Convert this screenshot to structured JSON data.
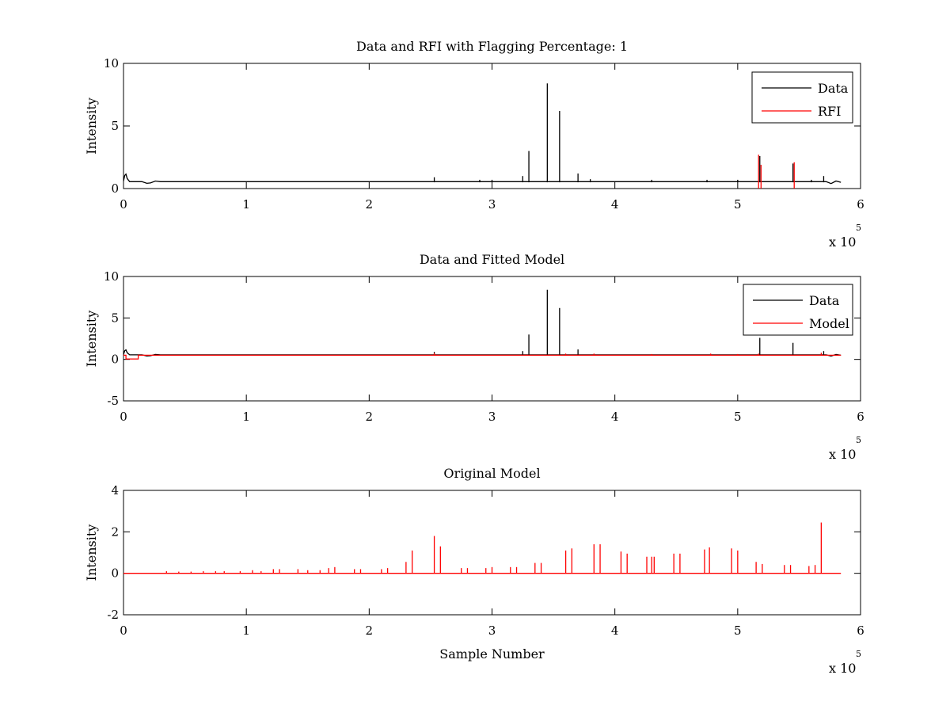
{
  "chart_data": [
    {
      "type": "line",
      "title": "Data and RFI with Flagging Percentage: 1",
      "xlabel": "",
      "ylabel": "Intensity",
      "xlim": [
        0,
        6
      ],
      "ylim": [
        0,
        10
      ],
      "xticks": [
        0,
        1,
        2,
        3,
        4,
        5,
        6
      ],
      "yticks": [
        0,
        5,
        10
      ],
      "x_exponent_label": "x 10",
      "x_exponent_power": "5",
      "legend": {
        "position": "top-right",
        "entries": [
          {
            "label": "Data",
            "color": "#000000"
          },
          {
            "label": "RFI",
            "color": "#ff0000"
          }
        ]
      },
      "series": [
        {
          "name": "Data",
          "color": "#000000",
          "baseline": [
            [
              0,
              0.6
            ],
            [
              0.01,
              1.05
            ],
            [
              0.02,
              1.15
            ],
            [
              0.03,
              0.8
            ],
            [
              0.05,
              0.55
            ],
            [
              0.15,
              0.55
            ],
            [
              0.19,
              0.42
            ],
            [
              0.22,
              0.45
            ],
            [
              0.26,
              0.6
            ],
            [
              0.3,
              0.55
            ],
            [
              5.6,
              0.55
            ],
            [
              5.72,
              0.55
            ],
            [
              5.76,
              0.4
            ],
            [
              5.8,
              0.6
            ],
            [
              5.84,
              0.5
            ]
          ],
          "spikes": [
            [
              2.53,
              0.9
            ],
            [
              2.9,
              0.7
            ],
            [
              3.0,
              0.7
            ],
            [
              3.25,
              1.0
            ],
            [
              3.3,
              3.0
            ],
            [
              3.45,
              8.4
            ],
            [
              3.55,
              6.2
            ],
            [
              3.7,
              1.2
            ],
            [
              3.8,
              0.75
            ],
            [
              4.3,
              0.7
            ],
            [
              4.75,
              0.7
            ],
            [
              5.0,
              0.7
            ],
            [
              5.18,
              2.6
            ],
            [
              5.45,
              2.0
            ],
            [
              5.6,
              0.7
            ],
            [
              5.7,
              1.0
            ]
          ]
        },
        {
          "name": "RFI",
          "color": "#ff0000",
          "baseline": [],
          "spikes": [
            [
              5.17,
              2.7
            ],
            [
              5.19,
              1.9
            ],
            [
              5.46,
              2.1
            ]
          ]
        }
      ]
    },
    {
      "type": "line",
      "title": "Data and Fitted Model",
      "xlabel": "",
      "ylabel": "Intensity",
      "xlim": [
        0,
        6
      ],
      "ylim": [
        -5,
        10
      ],
      "xticks": [
        0,
        1,
        2,
        3,
        4,
        5,
        6
      ],
      "yticks": [
        -5,
        0,
        5,
        10
      ],
      "x_exponent_label": "x 10",
      "x_exponent_power": "5",
      "legend": {
        "position": "top-right",
        "entries": [
          {
            "label": "Data",
            "color": "#000000"
          },
          {
            "label": "Model",
            "color": "#ff0000"
          }
        ]
      },
      "series": [
        {
          "name": "Data",
          "color": "#000000",
          "baseline": [
            [
              0,
              0.6
            ],
            [
              0.01,
              1.05
            ],
            [
              0.02,
              1.15
            ],
            [
              0.03,
              0.8
            ],
            [
              0.05,
              0.55
            ],
            [
              0.15,
              0.55
            ],
            [
              0.19,
              0.42
            ],
            [
              0.22,
              0.45
            ],
            [
              0.26,
              0.6
            ],
            [
              0.3,
              0.55
            ],
            [
              5.6,
              0.55
            ],
            [
              5.72,
              0.55
            ],
            [
              5.76,
              0.4
            ],
            [
              5.8,
              0.6
            ],
            [
              5.84,
              0.5
            ]
          ],
          "spikes": [
            [
              2.53,
              0.9
            ],
            [
              3.25,
              1.0
            ],
            [
              3.3,
              3.0
            ],
            [
              3.45,
              8.4
            ],
            [
              3.55,
              6.2
            ],
            [
              3.7,
              1.2
            ],
            [
              5.18,
              2.6
            ],
            [
              5.45,
              2.0
            ],
            [
              5.7,
              1.0
            ]
          ]
        },
        {
          "name": "Model",
          "color": "#ff0000",
          "baseline": [
            [
              0,
              0.5
            ],
            [
              0.02,
              0.5
            ],
            [
              0.02,
              0.05
            ],
            [
              0.12,
              0.05
            ],
            [
              0.12,
              0.5
            ],
            [
              5.84,
              0.5
            ]
          ],
          "spikes": [
            [
              2.53,
              0.75
            ],
            [
              3.6,
              0.7
            ],
            [
              3.83,
              0.7
            ],
            [
              4.3,
              0.65
            ],
            [
              4.78,
              0.7
            ],
            [
              5.0,
              0.65
            ],
            [
              5.17,
              0.7
            ],
            [
              5.68,
              0.8
            ]
          ]
        }
      ]
    },
    {
      "type": "line",
      "title": "Original Model",
      "xlabel": "Sample Number",
      "ylabel": "Intensity",
      "xlim": [
        0,
        6
      ],
      "ylim": [
        -2,
        4
      ],
      "xticks": [
        0,
        1,
        2,
        3,
        4,
        5,
        6
      ],
      "yticks": [
        -2,
        0,
        2,
        4
      ],
      "x_exponent_label": "x 10",
      "x_exponent_power": "5",
      "legend": null,
      "series": [
        {
          "name": "",
          "color": "#ff0000",
          "baseline": [
            [
              0,
              0
            ],
            [
              5.84,
              0
            ]
          ],
          "spikes": [
            [
              0.35,
              0.1
            ],
            [
              0.45,
              0.08
            ],
            [
              0.55,
              0.08
            ],
            [
              0.65,
              0.1
            ],
            [
              0.75,
              0.1
            ],
            [
              0.82,
              0.1
            ],
            [
              0.95,
              0.1
            ],
            [
              1.05,
              0.15
            ],
            [
              1.12,
              0.1
            ],
            [
              1.22,
              0.2
            ],
            [
              1.27,
              0.2
            ],
            [
              1.42,
              0.2
            ],
            [
              1.5,
              0.15
            ],
            [
              1.6,
              0.15
            ],
            [
              1.67,
              0.25
            ],
            [
              1.72,
              0.3
            ],
            [
              1.88,
              0.2
            ],
            [
              1.93,
              0.2
            ],
            [
              2.1,
              0.2
            ],
            [
              2.15,
              0.25
            ],
            [
              2.3,
              0.55
            ],
            [
              2.35,
              1.1
            ],
            [
              2.53,
              1.8
            ],
            [
              2.58,
              1.3
            ],
            [
              2.75,
              0.25
            ],
            [
              2.8,
              0.25
            ],
            [
              2.95,
              0.25
            ],
            [
              3.0,
              0.3
            ],
            [
              3.15,
              0.3
            ],
            [
              3.2,
              0.3
            ],
            [
              3.35,
              0.5
            ],
            [
              3.4,
              0.5
            ],
            [
              3.6,
              1.1
            ],
            [
              3.65,
              1.2
            ],
            [
              3.83,
              1.4
            ],
            [
              3.88,
              1.4
            ],
            [
              4.05,
              1.05
            ],
            [
              4.1,
              0.95
            ],
            [
              4.26,
              0.8
            ],
            [
              4.3,
              0.8
            ],
            [
              4.32,
              0.8
            ],
            [
              4.48,
              0.95
            ],
            [
              4.53,
              0.95
            ],
            [
              4.73,
              1.15
            ],
            [
              4.77,
              1.25
            ],
            [
              4.95,
              1.2
            ],
            [
              5.0,
              1.1
            ],
            [
              5.15,
              0.55
            ],
            [
              5.2,
              0.45
            ],
            [
              5.38,
              0.4
            ],
            [
              5.43,
              0.4
            ],
            [
              5.58,
              0.35
            ],
            [
              5.63,
              0.4
            ],
            [
              5.68,
              2.45
            ]
          ]
        }
      ]
    }
  ]
}
